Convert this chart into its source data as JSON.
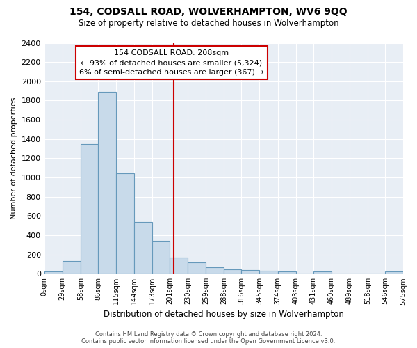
{
  "title": "154, CODSALL ROAD, WOLVERHAMPTON, WV6 9QQ",
  "subtitle": "Size of property relative to detached houses in Wolverhampton",
  "xlabel": "Distribution of detached houses by size in Wolverhampton",
  "ylabel": "Number of detached properties",
  "bar_color": "#c8daea",
  "bar_edge_color": "#6699bb",
  "fig_bg_color": "#ffffff",
  "ax_bg_color": "#e8eef5",
  "grid_color": "#ffffff",
  "vline_x": 208,
  "vline_color": "#cc0000",
  "bin_edges": [
    0,
    29,
    58,
    86,
    115,
    144,
    173,
    201,
    230,
    259,
    288,
    316,
    345,
    374,
    403,
    431,
    460,
    489,
    518,
    546,
    575
  ],
  "bin_labels": [
    "0sqm",
    "29sqm",
    "58sqm",
    "86sqm",
    "115sqm",
    "144sqm",
    "173sqm",
    "201sqm",
    "230sqm",
    "259sqm",
    "288sqm",
    "316sqm",
    "345sqm",
    "374sqm",
    "403sqm",
    "431sqm",
    "460sqm",
    "489sqm",
    "518sqm",
    "546sqm",
    "575sqm"
  ],
  "bar_heights": [
    20,
    130,
    1350,
    1890,
    1045,
    540,
    340,
    170,
    115,
    65,
    45,
    35,
    30,
    20,
    0,
    25,
    0,
    0,
    0,
    20
  ],
  "ylim": [
    0,
    2400
  ],
  "yticks": [
    0,
    200,
    400,
    600,
    800,
    1000,
    1200,
    1400,
    1600,
    1800,
    2000,
    2200,
    2400
  ],
  "annotation_title": "154 CODSALL ROAD: 208sqm",
  "annotation_line1": "← 93% of detached houses are smaller (5,324)",
  "annotation_line2": "6% of semi-detached houses are larger (367) →",
  "annotation_box_color": "#ffffff",
  "annotation_box_edge": "#cc0000",
  "footer1": "Contains HM Land Registry data © Crown copyright and database right 2024.",
  "footer2": "Contains public sector information licensed under the Open Government Licence v3.0."
}
